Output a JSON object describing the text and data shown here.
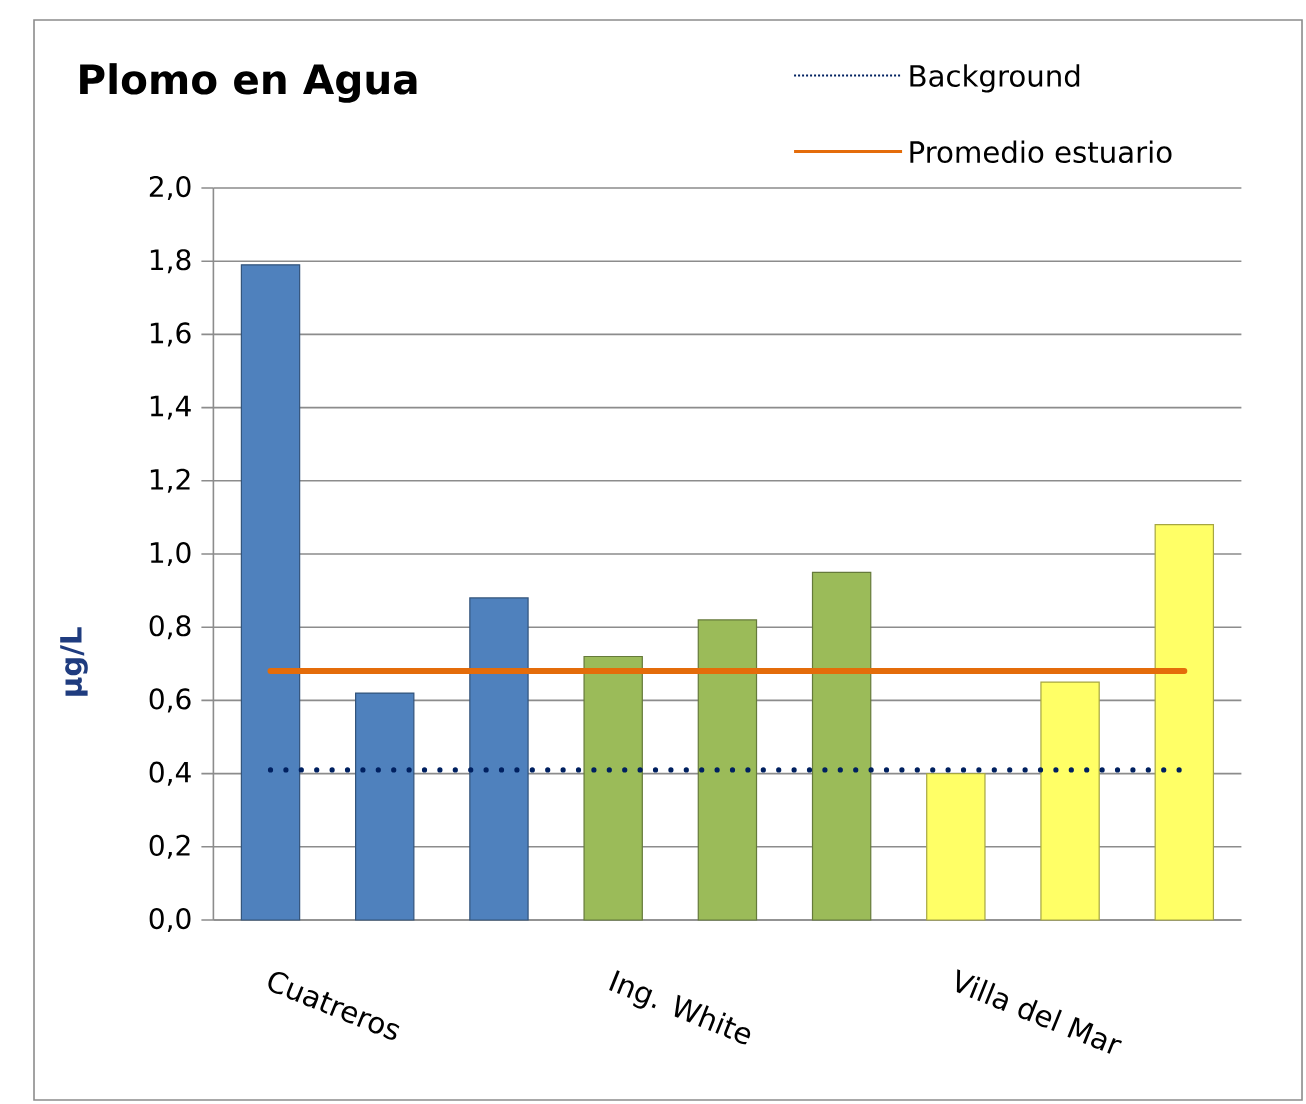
{
  "chart_data": {
    "type": "bar",
    "title": "Plomo en Agua",
    "ylabel": "µg/L",
    "categories": [
      "Cuatreros",
      null,
      null,
      "Ing. White",
      null,
      null,
      "Villa del Mar",
      null,
      null
    ],
    "series": [
      {
        "colors": [
          "#4f81bd",
          "#4f81bd",
          "#4f81bd",
          "#9bbb59",
          "#9bbb59",
          "#9bbb59",
          "#ffff66",
          "#ffff66",
          "#ffff66"
        ],
        "values": [
          1.79,
          0.62,
          0.88,
          0.72,
          0.82,
          0.95,
          0.4,
          0.65,
          1.08
        ]
      },
      {
        "type": "line",
        "name": "Background",
        "color": "#002060",
        "line_style": "dotted",
        "values": [
          0.41,
          0.41,
          0.41,
          0.41,
          0.41,
          0.41,
          0.41,
          0.41,
          0.41
        ]
      },
      {
        "type": "line",
        "name": "Promedio estuario",
        "color": "#e46c0a",
        "line_style": "solid",
        "values": [
          0.68,
          0.68,
          0.68,
          0.68,
          0.68,
          0.68,
          0.68,
          0.68,
          0.68
        ]
      }
    ],
    "ylim": [
      0,
      2
    ],
    "yticks": [
      {
        "value": 0,
        "label": "0,0"
      },
      {
        "value": 0.2,
        "label": "0,2"
      },
      {
        "value": 0.4,
        "label": "0,4"
      },
      {
        "value": 0.6,
        "label": "0,6"
      },
      {
        "value": 0.8,
        "label": "0,8"
      },
      {
        "value": 1.0,
        "label": "1,0"
      },
      {
        "value": 1.2,
        "label": "1,2"
      },
      {
        "value": 1.4,
        "label": "1,4"
      },
      {
        "value": 1.6,
        "label": "1,6"
      },
      {
        "value": 1.8,
        "label": "1,8"
      },
      {
        "value": 2.0,
        "label": "2,0"
      }
    ],
    "grid": "y",
    "legend": "top right"
  }
}
